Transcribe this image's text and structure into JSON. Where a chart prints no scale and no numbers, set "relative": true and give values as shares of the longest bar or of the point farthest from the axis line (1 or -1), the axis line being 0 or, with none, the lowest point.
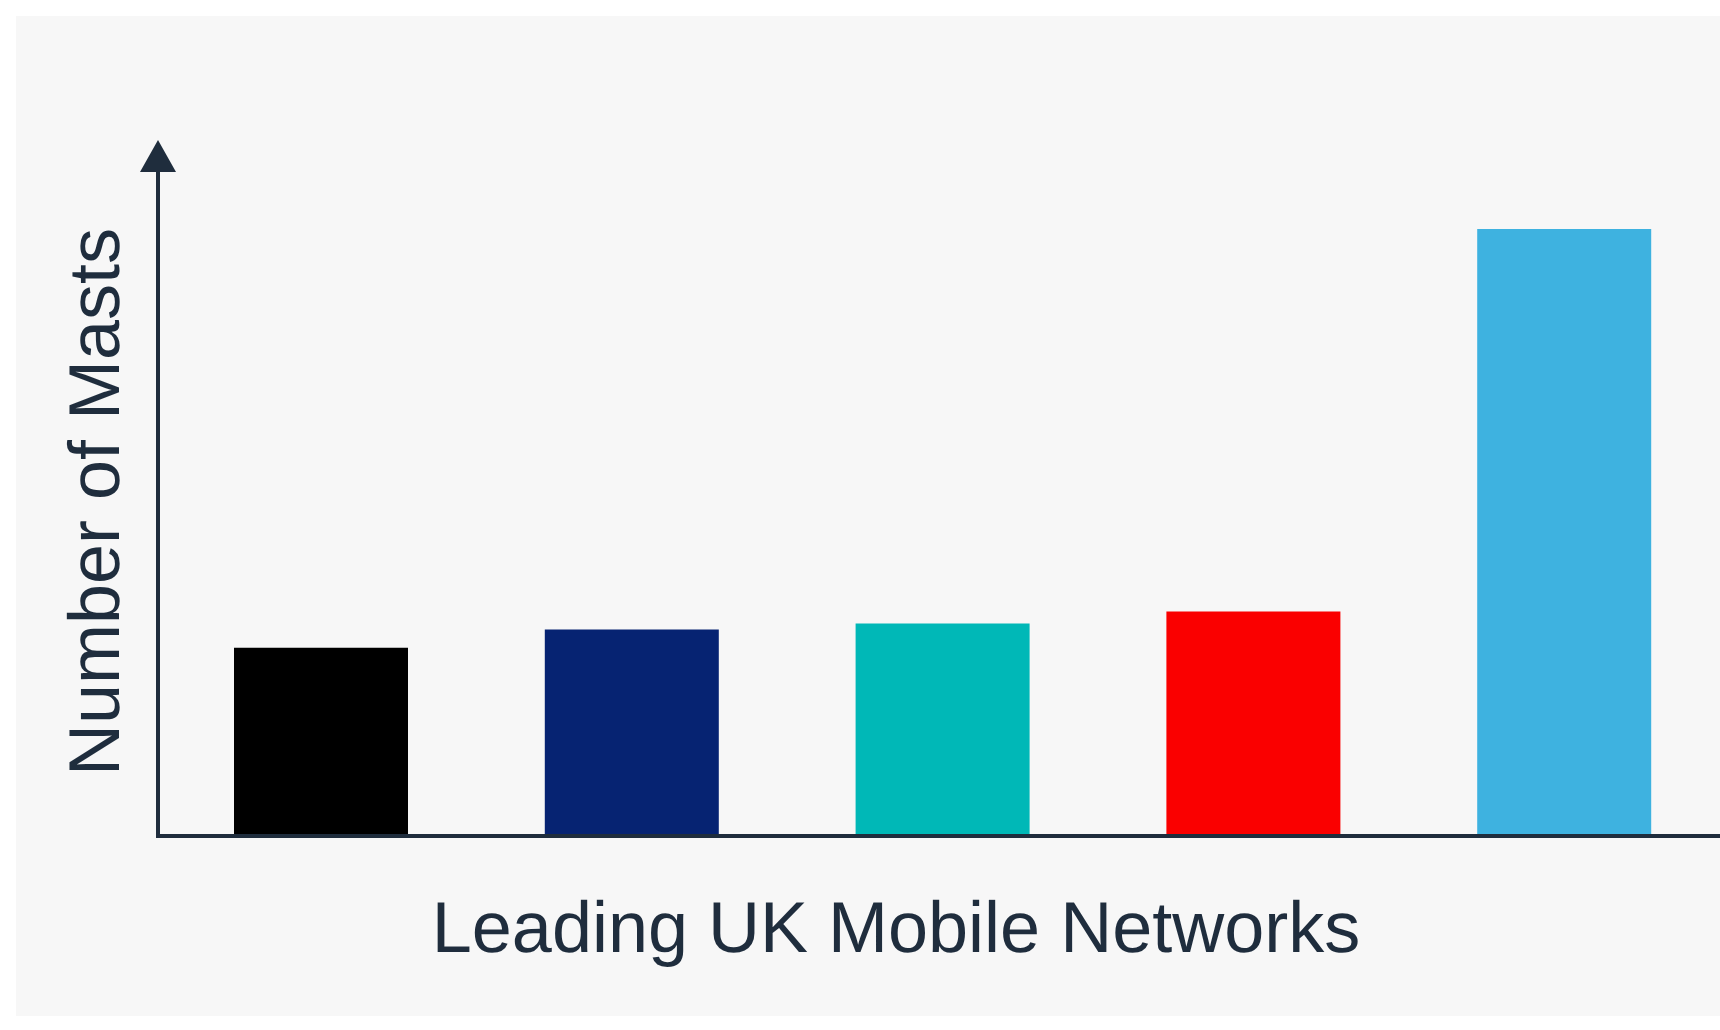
{
  "chart_data": {
    "type": "bar",
    "xlabel": "Leading UK Mobile Networks",
    "ylabel": "Number of Masts",
    "categories": [
      null,
      null,
      null,
      null,
      null
    ],
    "values": [
      0.31,
      0.34,
      0.35,
      0.37,
      1
    ],
    "colors": [
      "#000000",
      "#062372",
      "#00b8b7",
      "#fa0000",
      "#3eb2e0"
    ],
    "relative": true
  }
}
